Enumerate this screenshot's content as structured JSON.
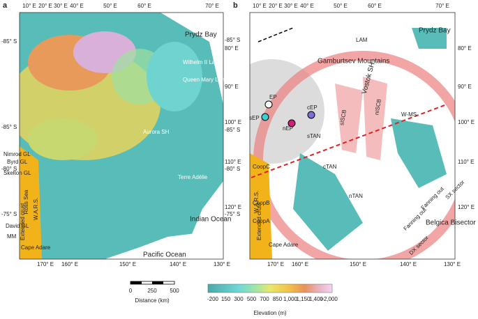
{
  "panel_a": {
    "label": "a",
    "lon_top": [
      "10° E",
      "20° E",
      "30° E",
      "40° E",
      "50° E",
      "60° E",
      "70° E"
    ],
    "lat_left": [
      "-85° S",
      "-85° S",
      "-80° S",
      "-75° S"
    ],
    "right_axis": [
      "-85° S",
      "80° E",
      "90° E",
      "100° E",
      "-85° S",
      "110° E",
      "-80° S",
      "120° E",
      "-75° S"
    ],
    "lon_bottom": [
      "170° E",
      "160° E",
      "150° E",
      "140° E",
      "130° E"
    ],
    "places": [
      "Prydz Bay",
      "Indian Ocean",
      "Pacific Ocean",
      "Ross Sea",
      "W.A.R.S.",
      "Aurora SH",
      "Nimrod GL",
      "Byrd GL",
      "Skelton GL",
      "David GL",
      "MM",
      "Cape Adare",
      "Extended crust",
      "Wilhelm II Land",
      "Queen Mary Land",
      "Terre Adélie"
    ]
  },
  "panel_b": {
    "label": "b",
    "lon_top": [
      "10° E",
      "20° E",
      "30° E",
      "40° E",
      "50° E",
      "60° E",
      "70° E"
    ],
    "right_axis": [
      "80° E",
      "90° E",
      "100° E",
      "110° E",
      "120° E"
    ],
    "lon_bottom": [
      "170° E",
      "160° E",
      "150° E",
      "140° E",
      "130° E"
    ],
    "places": [
      "Prydz Bay",
      "Gamburtsev Mountains",
      "Vostok SH",
      "EP",
      "sEP",
      "cEP",
      "nEP",
      "sTAN",
      "cTAN",
      "nTAN",
      "sISCB",
      "nISCB",
      "LAM",
      "W-MS",
      "CoopC",
      "CoopB",
      "CoopA",
      "Cape Adare",
      "Fanning out",
      "Fanning out",
      "Belgica Bisector",
      "SX sector",
      "DX sector",
      "W.A.R.S.",
      "Extended crust"
    ]
  },
  "scale_bar": {
    "labels": [
      "0",
      "250",
      "500"
    ],
    "title": "Distance (km)"
  },
  "colorbar": {
    "labels": [
      "-200",
      "150",
      "300",
      "500",
      "700",
      "850",
      "1,000",
      "1,150",
      "1,400",
      ">2,000"
    ],
    "title": "Elevation (m)"
  }
}
